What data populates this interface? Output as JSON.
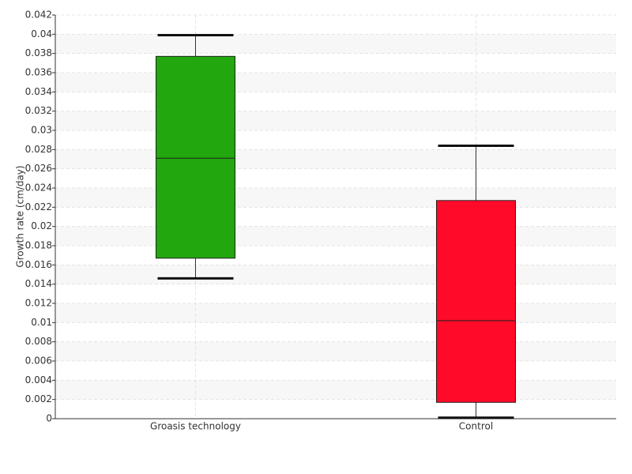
{
  "chart_data": {
    "type": "box",
    "y_label": "Growth rate (cm/day)",
    "categories": [
      "Groasis technology",
      "Control"
    ],
    "values": [
      {
        "min": 0.0146,
        "q1": 0.0167,
        "median": 0.0271,
        "q3": 0.0377,
        "max": 0.0399
      },
      {
        "min": 0.0001,
        "q1": 0.0017,
        "median": 0.0102,
        "q3": 0.0227,
        "max": 0.0284
      }
    ],
    "colors": [
      "#22a70f",
      "#ff0a28"
    ],
    "ylim": [
      0,
      0.042
    ],
    "yticks": [
      0,
      0.002,
      0.004,
      0.006,
      0.008,
      0.01,
      0.012,
      0.014,
      0.016,
      0.018,
      0.02,
      0.022,
      0.024,
      0.026,
      0.028,
      0.03,
      0.032,
      0.034,
      0.036,
      0.038,
      0.04,
      0.042
    ],
    "grid": true
  }
}
